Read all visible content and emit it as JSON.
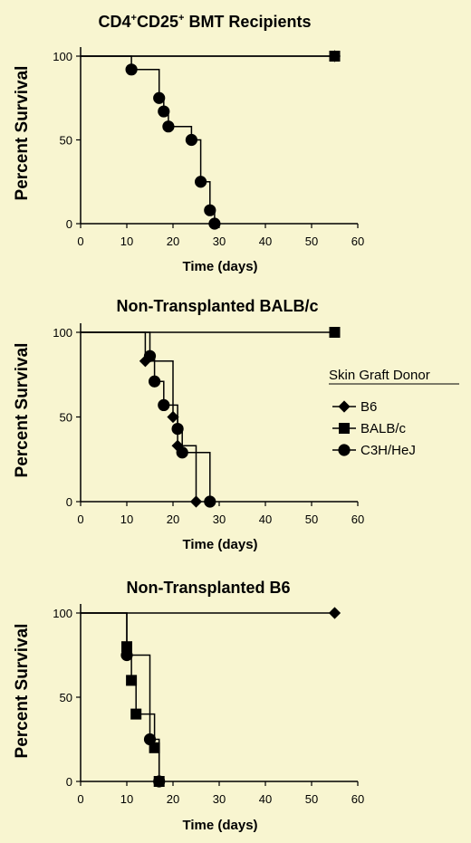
{
  "chart_data": [
    {
      "type": "line",
      "title_main": "CD4",
      "title_sup1": "+",
      "title_mid": "CD25",
      "title_sup2": "+",
      "title_rest": " BMT Recipients",
      "xlabel": "Time (days)",
      "ylabel": "Percent Survival",
      "xlim": [
        0,
        60
      ],
      "ylim": [
        0,
        100
      ],
      "xticks": [
        "0",
        "10",
        "20",
        "30",
        "40",
        "50",
        "60"
      ],
      "yticks": [
        "0",
        "50",
        "100"
      ],
      "grid": false,
      "series": [
        {
          "marker": "diamond",
          "x": [
            0,
            55
          ],
          "y": [
            100,
            100
          ],
          "censored_x": [
            55
          ],
          "censored_y": [
            100
          ]
        },
        {
          "marker": "square",
          "x": [
            0,
            55
          ],
          "y": [
            100,
            100
          ],
          "censored_x": [
            55
          ],
          "censored_y": [
            100
          ]
        },
        {
          "marker": "circle",
          "x": [
            0,
            11,
            17,
            18,
            19,
            24,
            26,
            28,
            29
          ],
          "y": [
            100,
            92,
            75,
            67,
            58,
            50,
            25,
            8,
            0
          ]
        }
      ]
    },
    {
      "type": "line",
      "title": "Non-Transplanted BALB/c",
      "xlabel": "Time (days)",
      "ylabel": "Percent Survival",
      "xlim": [
        0,
        60
      ],
      "ylim": [
        0,
        100
      ],
      "xticks": [
        "0",
        "10",
        "20",
        "30",
        "40",
        "50",
        "60"
      ],
      "yticks": [
        "0",
        "50",
        "100"
      ],
      "grid": false,
      "legend": {
        "title": "Skin Graft Donor",
        "placement": "right",
        "entries": [
          {
            "label": "B6",
            "marker": "diamond"
          },
          {
            "label": "BALB/c",
            "marker": "square"
          },
          {
            "label": "C3H/HeJ",
            "marker": "circle"
          }
        ]
      },
      "series": [
        {
          "marker": "diamond",
          "x": [
            0,
            14,
            20,
            21,
            25
          ],
          "y": [
            100,
            83,
            50,
            33,
            0
          ]
        },
        {
          "marker": "square",
          "x": [
            0,
            55
          ],
          "y": [
            100,
            100
          ],
          "censored_x": [
            55
          ],
          "censored_y": [
            100
          ]
        },
        {
          "marker": "circle",
          "x": [
            0,
            15,
            16,
            18,
            21,
            22,
            28
          ],
          "y": [
            100,
            86,
            71,
            57,
            43,
            29,
            0
          ]
        }
      ]
    },
    {
      "type": "line",
      "title": "Non-Transplanted B6",
      "xlabel": "Time (days)",
      "ylabel": "Percent Survival",
      "xlim": [
        0,
        60
      ],
      "ylim": [
        0,
        100
      ],
      "xticks": [
        "0",
        "10",
        "20",
        "30",
        "40",
        "50",
        "60"
      ],
      "yticks": [
        "0",
        "50",
        "100"
      ],
      "grid": false,
      "series": [
        {
          "marker": "diamond",
          "x": [
            0,
            55
          ],
          "y": [
            100,
            100
          ],
          "censored_x": [
            55
          ],
          "censored_y": [
            100
          ]
        },
        {
          "marker": "square",
          "x": [
            0,
            10,
            11,
            12,
            16,
            17
          ],
          "y": [
            100,
            80,
            60,
            40,
            20,
            0
          ]
        },
        {
          "marker": "circle",
          "x": [
            0,
            10,
            15,
            17
          ],
          "y": [
            100,
            75,
            25,
            0
          ]
        }
      ]
    }
  ]
}
